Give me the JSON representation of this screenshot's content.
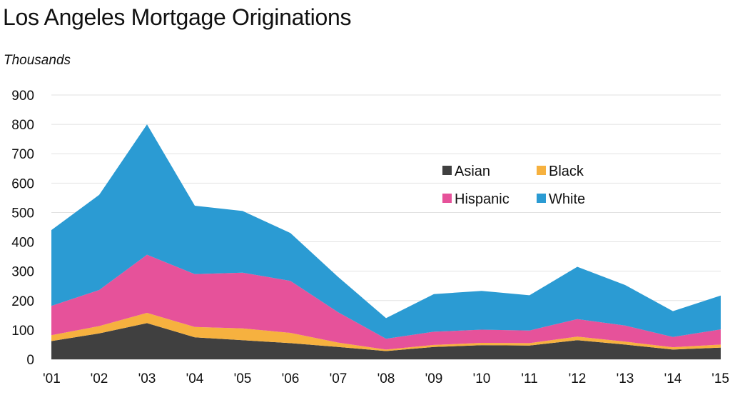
{
  "title": "Los Angeles Mortgage Originations",
  "subtitle": "Thousands",
  "chart_data": {
    "type": "area",
    "stacked": true,
    "title": "Los Angeles Mortgage Originations",
    "ylabel": "Thousands",
    "xlabel": "",
    "categories": [
      "'01",
      "'02",
      "'03",
      "'04",
      "'05",
      "'06",
      "'07",
      "'08",
      "'09",
      "'10",
      "'11",
      "'12",
      "'13",
      "'14",
      "'15"
    ],
    "ylim": [
      0,
      900
    ],
    "yticks": [
      0,
      100,
      200,
      300,
      400,
      500,
      600,
      700,
      800,
      900
    ],
    "grid": true,
    "legend_position": "center-right",
    "series": [
      {
        "name": "Asian",
        "color": "#404040",
        "values": [
          62,
          88,
          123,
          75,
          65,
          55,
          42,
          28,
          42,
          48,
          47,
          65,
          50,
          33,
          40
        ]
      },
      {
        "name": "Black",
        "color": "#f6b13f",
        "values": [
          20,
          25,
          35,
          35,
          40,
          35,
          15,
          5,
          7,
          8,
          8,
          12,
          10,
          8,
          10
        ]
      },
      {
        "name": "Hispanic",
        "color": "#e6529a",
        "values": [
          100,
          123,
          198,
          180,
          190,
          177,
          103,
          37,
          45,
          45,
          43,
          60,
          55,
          35,
          52
        ]
      },
      {
        "name": "White",
        "color": "#2b9bd3",
        "values": [
          258,
          324,
          444,
          233,
          210,
          163,
          120,
          70,
          128,
          132,
          120,
          178,
          138,
          88,
          115
        ]
      }
    ]
  }
}
